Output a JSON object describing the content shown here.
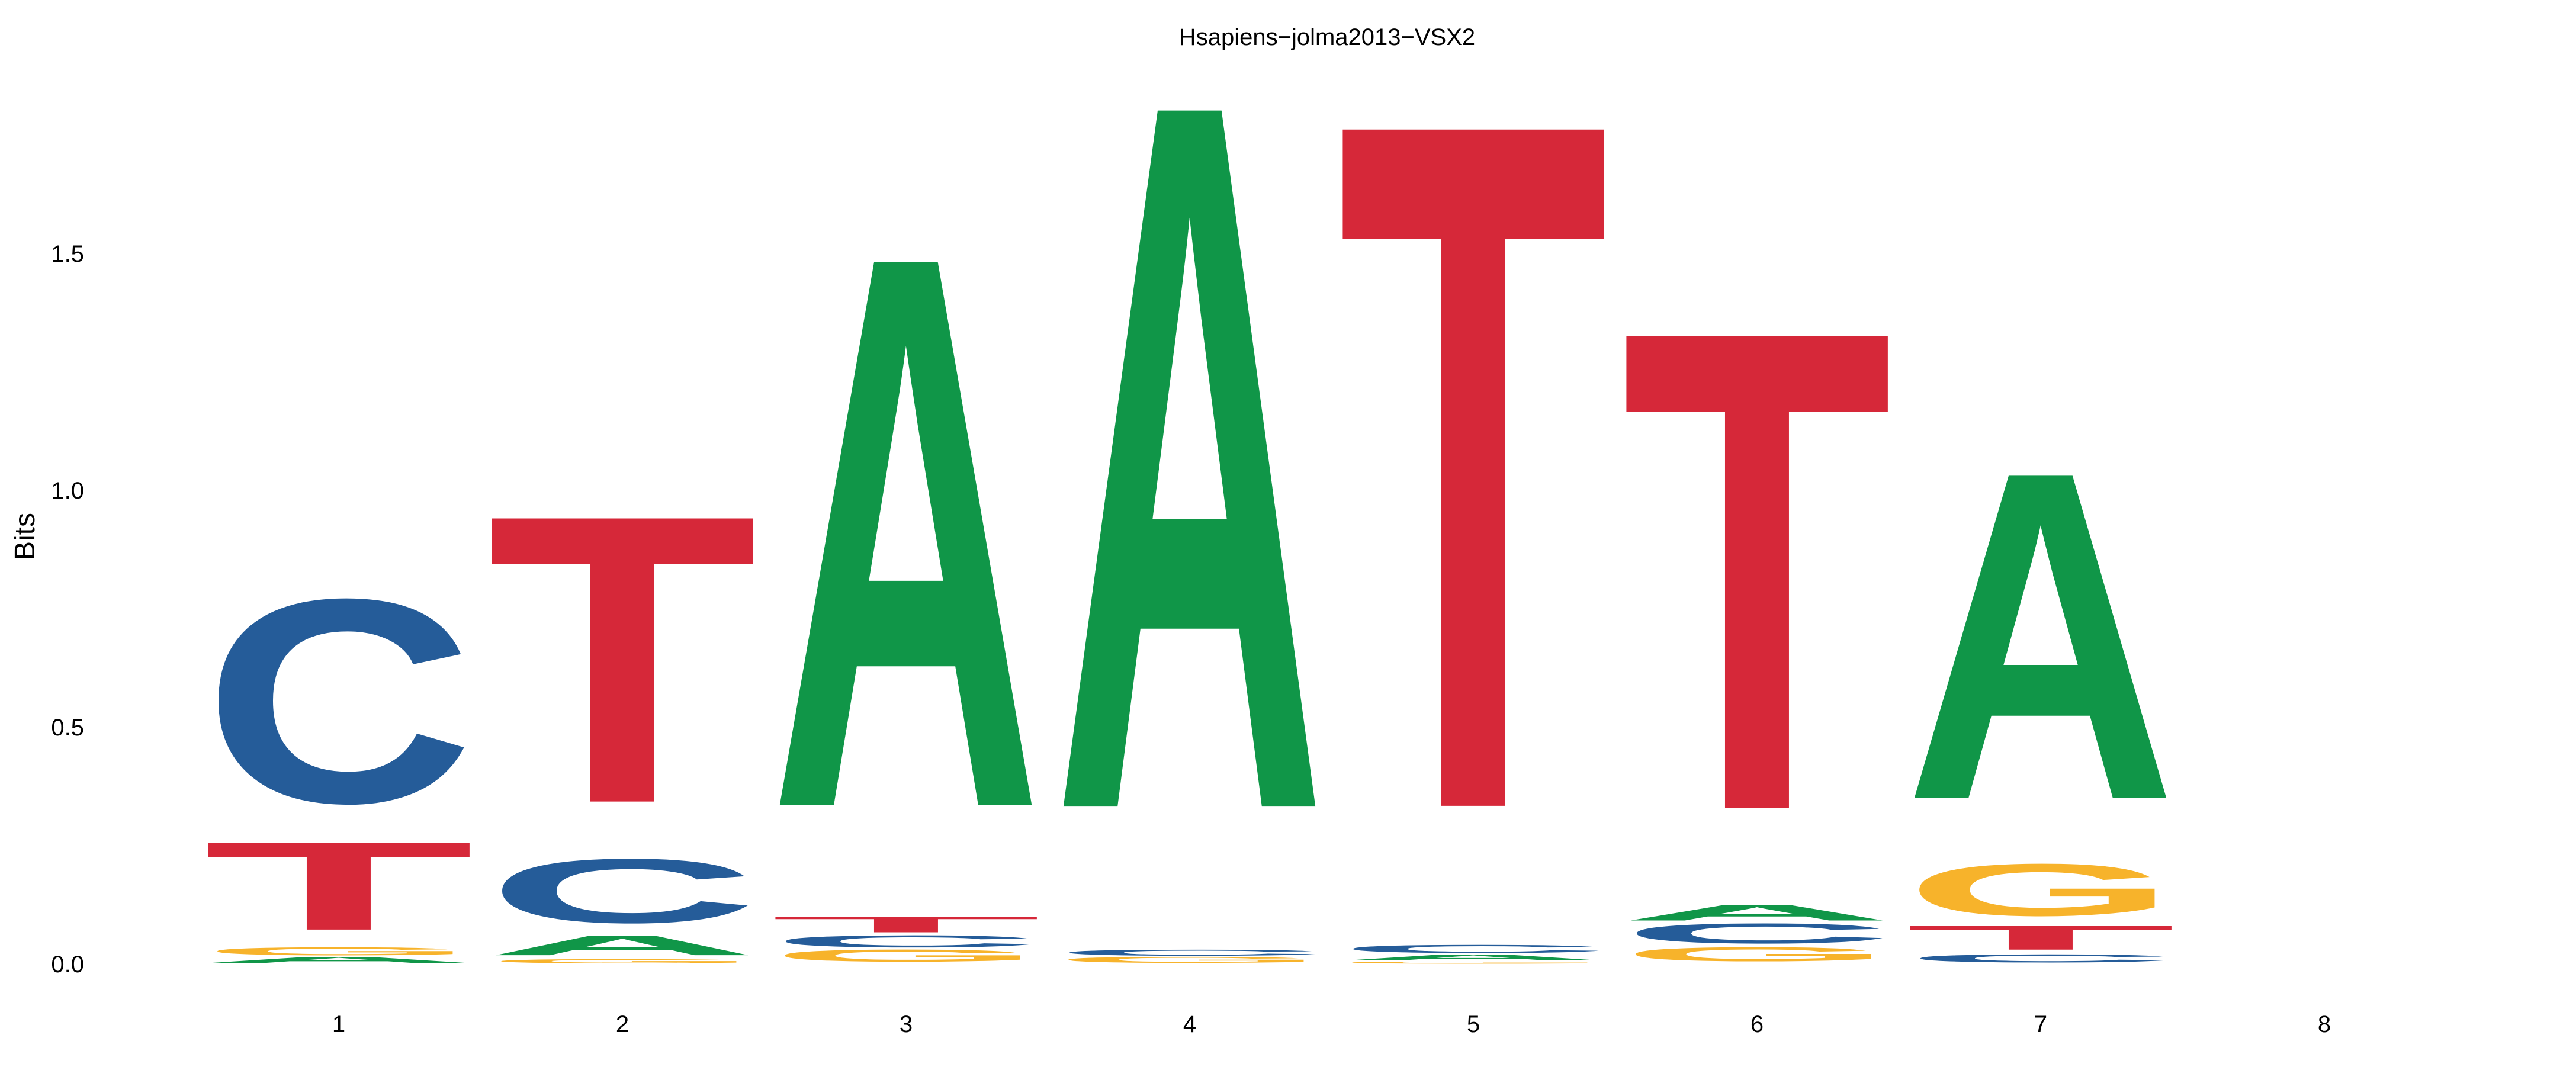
{
  "chart_data": {
    "type": "sequence-logo",
    "title": "Hsapiens−jolma2013−VSX2",
    "ylabel": "Bits",
    "xlabel": "",
    "ylim": [
      0,
      1.8
    ],
    "yticks": [
      0.0,
      0.5,
      1.0,
      1.5
    ],
    "ytick_labels": [
      "0.0",
      "0.5",
      "1.0",
      "1.5"
    ],
    "positions": [
      {
        "label": "1",
        "letters": [
          {
            "base": "A",
            "bits": 0.015
          },
          {
            "base": "G",
            "bits": 0.02
          },
          {
            "base": "T",
            "bits": 0.22
          },
          {
            "base": "C",
            "bits": 0.51
          }
        ]
      },
      {
        "label": "2",
        "letters": [
          {
            "base": "G",
            "bits": 0.01
          },
          {
            "base": "A",
            "bits": 0.05
          },
          {
            "base": "C",
            "bits": 0.16
          },
          {
            "base": "T",
            "bits": 0.72
          }
        ]
      },
      {
        "label": "3",
        "letters": [
          {
            "base": "G",
            "bits": 0.03
          },
          {
            "base": "C",
            "bits": 0.03
          },
          {
            "base": "T",
            "bits": 0.04
          },
          {
            "base": "A",
            "bits": 1.38
          }
        ]
      },
      {
        "label": "4",
        "letters": [
          {
            "base": "G",
            "bits": 0.015
          },
          {
            "base": "C",
            "bits": 0.015
          },
          {
            "base": "A",
            "bits": 1.77
          }
        ]
      },
      {
        "label": "5",
        "letters": [
          {
            "base": "G",
            "bits": 0.005
          },
          {
            "base": "A",
            "bits": 0.015
          },
          {
            "base": "C",
            "bits": 0.02
          },
          {
            "base": "T",
            "bits": 1.72
          }
        ]
      },
      {
        "label": "6",
        "letters": [
          {
            "base": "G",
            "bits": 0.035
          },
          {
            "base": "C",
            "bits": 0.05
          },
          {
            "base": "A",
            "bits": 0.04
          },
          {
            "base": "T",
            "bits": 1.2
          }
        ]
      },
      {
        "label": "7",
        "letters": [
          {
            "base": "C",
            "bits": 0.02
          },
          {
            "base": "T",
            "bits": 0.06
          },
          {
            "base": "G",
            "bits": 0.13
          },
          {
            "base": "A",
            "bits": 0.82
          }
        ]
      },
      {
        "label": "8",
        "letters": []
      }
    ],
    "colors": {
      "A": "#109648",
      "C": "#255c99",
      "G": "#f7b32b",
      "T": "#d62839"
    },
    "grid": false,
    "legend": "none"
  }
}
